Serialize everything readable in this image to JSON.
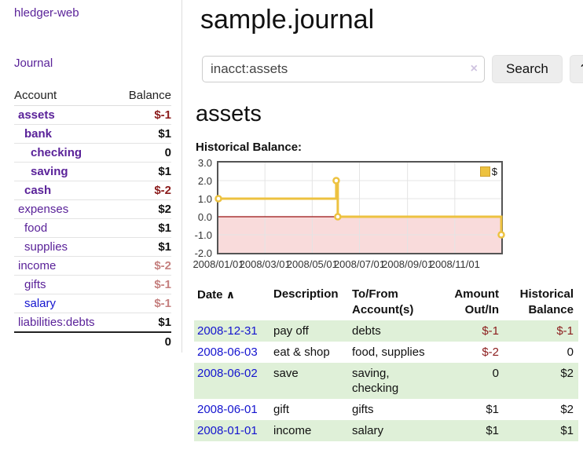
{
  "brand": "hledger-web",
  "nav": {
    "journal": "Journal"
  },
  "sidebar": {
    "col_account": "Account",
    "col_balance": "Balance",
    "accounts": [
      {
        "name": "assets",
        "balance": "$-1"
      },
      {
        "name": "bank",
        "balance": "$1"
      },
      {
        "name": "checking",
        "balance": "0"
      },
      {
        "name": "saving",
        "balance": "$1"
      },
      {
        "name": "cash",
        "balance": "$-2"
      },
      {
        "name": "expenses",
        "balance": "$2"
      },
      {
        "name": "food",
        "balance": "$1"
      },
      {
        "name": "supplies",
        "balance": "$1"
      },
      {
        "name": "income",
        "balance": "$-2"
      },
      {
        "name": "gifts",
        "balance": "$-1"
      },
      {
        "name": "salary",
        "balance": "$-1"
      },
      {
        "name": "liabilities:debts",
        "balance": "$1"
      }
    ],
    "total": "0"
  },
  "main": {
    "title": "sample.journal",
    "account_heading": "assets",
    "chart_title": "Historical Balance:"
  },
  "search": {
    "value": "inacct:assets",
    "clear_icon": "×",
    "search_button": "Search",
    "help_button": "?"
  },
  "chart_data": {
    "type": "line",
    "title": "Historical Balance:",
    "legend": "$",
    "legend_position": "top-right",
    "grid": true,
    "ylim": [
      -2,
      3
    ],
    "yticks": [
      3,
      2,
      1,
      0,
      -1,
      -2
    ],
    "xticks": [
      "2008/01/01",
      "2008/03/01",
      "2008/05/01",
      "2008/07/01",
      "2008/09/01",
      "2008/11/01"
    ],
    "xrange": [
      "2008-01-01",
      "2008-12-31"
    ],
    "series": [
      {
        "name": "$",
        "color": "#edc240",
        "style": "step",
        "points": [
          {
            "x": "2008-01-01",
            "y": 1
          },
          {
            "x": "2008-06-01",
            "y": 2
          },
          {
            "x": "2008-06-03",
            "y": 0
          },
          {
            "x": "2008-12-31",
            "y": -1
          }
        ]
      }
    ],
    "zero_line_color": "#991111",
    "negative_region_color": "#f9dbdb"
  },
  "register": {
    "headers": {
      "date": "Date",
      "sort_icon": "∧",
      "description": "Description",
      "tofrom1": "To/From",
      "tofrom2": "Account(s)",
      "amount1": "Amount",
      "amount2": "Out/In",
      "hist1": "Historical",
      "hist2": "Balance"
    },
    "rows": [
      {
        "date": "2008-12-31",
        "description": "pay off",
        "accounts": "debts",
        "amount": "$-1",
        "balance": "$-1"
      },
      {
        "date": "2008-06-03",
        "description": "eat & shop",
        "accounts": "food, supplies",
        "amount": "$-2",
        "balance": "0"
      },
      {
        "date": "2008-06-02",
        "description": "save",
        "accounts": "saving, checking",
        "amount": "0",
        "balance": "$2"
      },
      {
        "date": "2008-06-01",
        "description": "gift",
        "accounts": "gifts",
        "amount": "$1",
        "balance": "$2"
      },
      {
        "date": "2008-01-01",
        "description": "income",
        "accounts": "salary",
        "amount": "$1",
        "balance": "$1"
      }
    ]
  }
}
